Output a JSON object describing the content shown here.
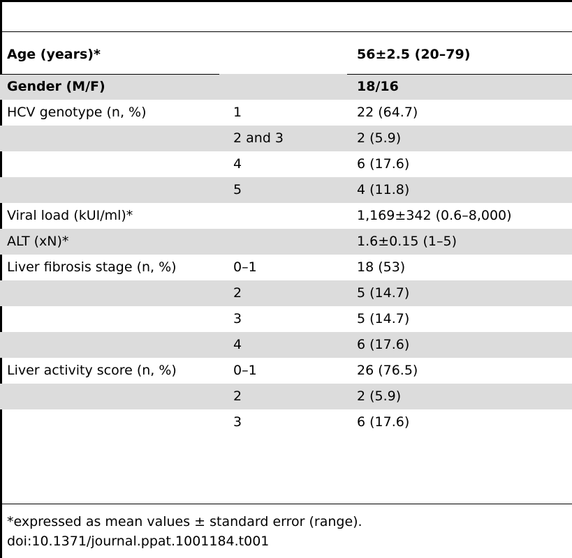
{
  "table": {
    "rows": [
      {
        "label": "Age (years)*",
        "sub": "",
        "value": "56±2.5 (20–79)",
        "bold": true,
        "shaded": false
      },
      {
        "label": "Gender (M/F)",
        "sub": "",
        "value": "18/16",
        "bold": true,
        "shaded": true
      },
      {
        "label": "HCV genotype (n, %)",
        "sub": "1",
        "value": "22 (64.7)",
        "bold": false,
        "shaded": false
      },
      {
        "label": "",
        "sub": "2 and 3",
        "value": "2 (5.9)",
        "bold": false,
        "shaded": true
      },
      {
        "label": "",
        "sub": "4",
        "value": "6 (17.6)",
        "bold": false,
        "shaded": false
      },
      {
        "label": "",
        "sub": "5",
        "value": "4 (11.8)",
        "bold": false,
        "shaded": true
      },
      {
        "label": "Viral load (kUI/ml)*",
        "sub": "",
        "value": "1,169±342 (0.6–8,000)",
        "bold": false,
        "shaded": false
      },
      {
        "label": "ALT (xN)*",
        "sub": "",
        "value": "1.6±0.15 (1–5)",
        "bold": false,
        "shaded": true
      },
      {
        "label": "Liver fibrosis stage (n, %)",
        "sub": "0–1",
        "value": "18 (53)",
        "bold": false,
        "shaded": false
      },
      {
        "label": "",
        "sub": "2",
        "value": "5 (14.7)",
        "bold": false,
        "shaded": true
      },
      {
        "label": "",
        "sub": "3",
        "value": "5 (14.7)",
        "bold": false,
        "shaded": false
      },
      {
        "label": "",
        "sub": "4",
        "value": "6 (17.6)",
        "bold": false,
        "shaded": true
      },
      {
        "label": "Liver activity score (n, %)",
        "sub": "0–1",
        "value": "26 (76.5)",
        "bold": false,
        "shaded": false
      },
      {
        "label": "",
        "sub": "2",
        "value": "2 (5.9)",
        "bold": false,
        "shaded": true
      },
      {
        "label": "",
        "sub": "3",
        "value": "6 (17.6)",
        "bold": false,
        "shaded": false
      }
    ]
  },
  "footnote": {
    "note": "*expressed as mean values ± standard error (range).",
    "doi": "doi:10.1371/journal.ppat.1001184.t001"
  },
  "colors": {
    "shade": "#dcdcdc",
    "rule": "#000000"
  }
}
